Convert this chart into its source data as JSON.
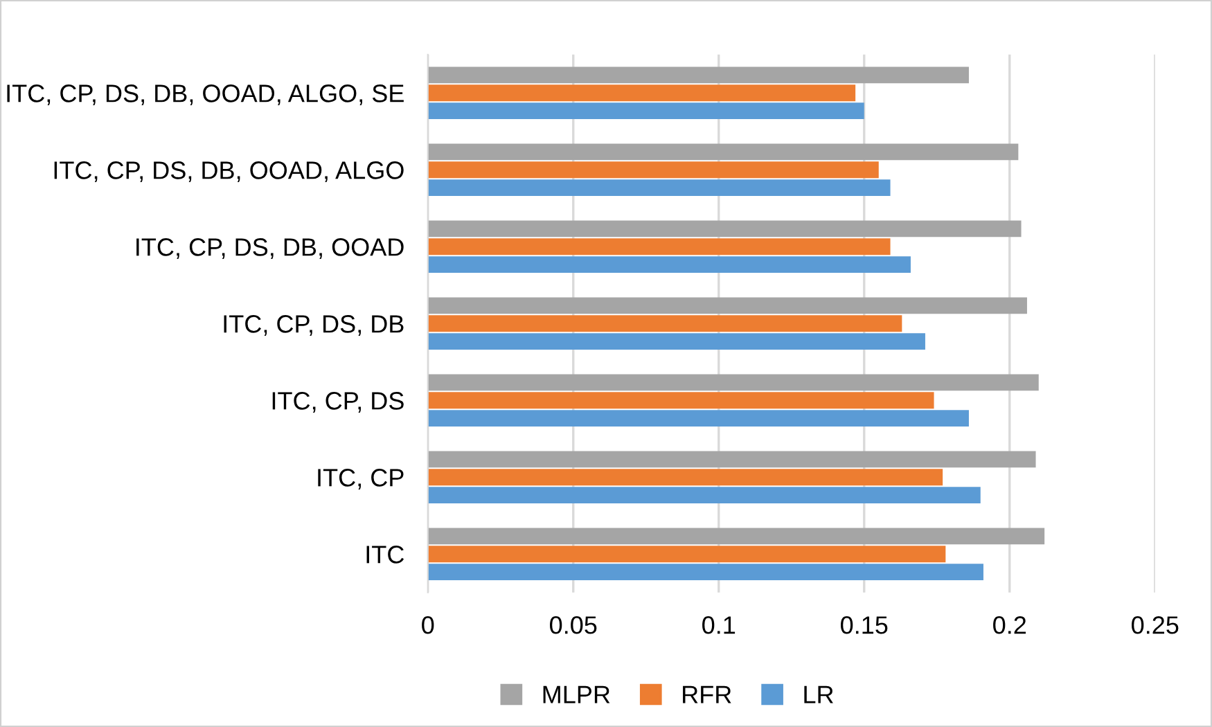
{
  "chart_data": {
    "type": "bar",
    "orientation": "horizontal",
    "categories": [
      "ITC, CP, DS, DB, OOAD, ALGO, SE",
      "ITC, CP, DS, DB, OOAD, ALGO",
      "ITC, CP, DS, DB, OOAD",
      "ITC, CP, DS, DB",
      "ITC, CP, DS",
      "ITC, CP",
      "ITC"
    ],
    "series": [
      {
        "name": "MLPR",
        "color": "#a5a5a5",
        "values": [
          0.186,
          0.203,
          0.204,
          0.206,
          0.21,
          0.209,
          0.212
        ]
      },
      {
        "name": "RFR",
        "color": "#ed7d31",
        "values": [
          0.147,
          0.155,
          0.159,
          0.163,
          0.174,
          0.177,
          0.178
        ]
      },
      {
        "name": "LR",
        "color": "#5b9bd5",
        "values": [
          0.15,
          0.159,
          0.166,
          0.171,
          0.186,
          0.19,
          0.191
        ]
      }
    ],
    "xlim": [
      0,
      0.25
    ],
    "xticks": [
      0,
      0.05,
      0.1,
      0.15,
      0.2,
      0.25
    ],
    "grid": "x",
    "legend": "bottom"
  }
}
